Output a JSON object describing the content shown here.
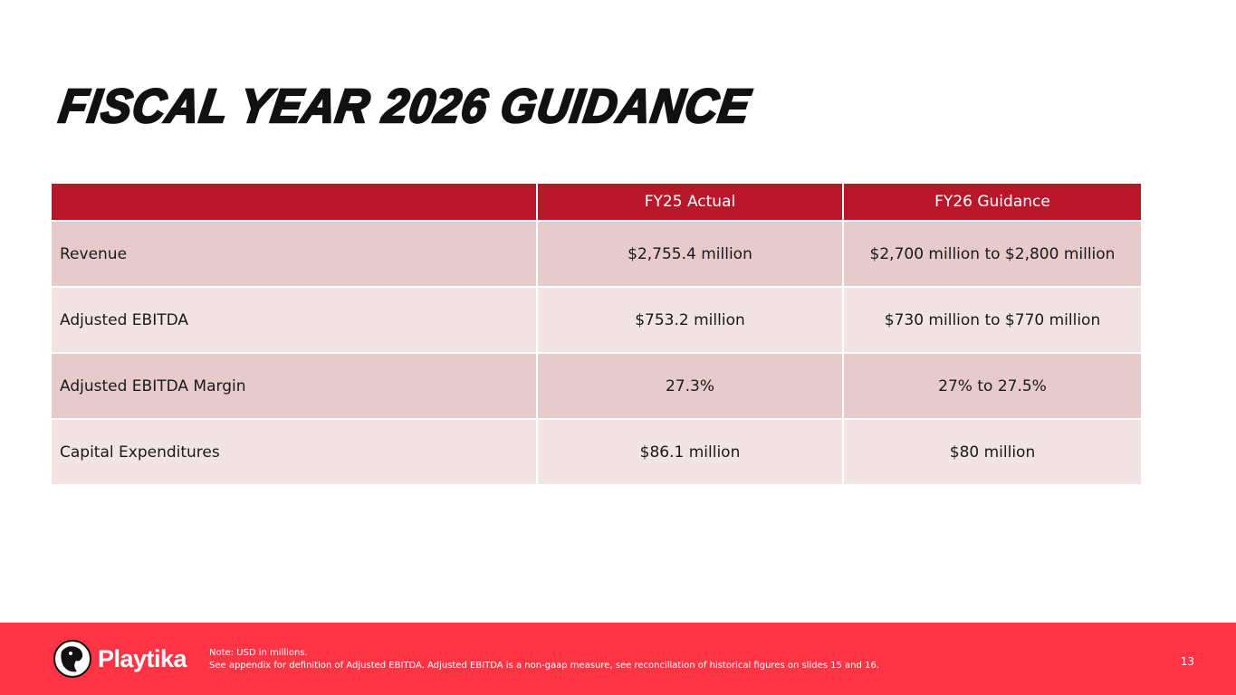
{
  "title": "FISCAL YEAR 2026 GUIDANCE",
  "table": {
    "headers": [
      "",
      "FY25 Actual",
      "FY26 Guidance"
    ],
    "rows": [
      {
        "label": "Revenue",
        "fy25": "$2,755.4  million",
        "fy26": "$2,700 million to $2,800 million"
      },
      {
        "label": "Adjusted EBITDA",
        "fy25": "$753.2 million",
        "fy26": "$730 million to $770 million"
      },
      {
        "label": "Adjusted EBITDA Margin",
        "fy25": "27.3%",
        "fy26": "27% to 27.5%"
      },
      {
        "label": "Capital Expenditures",
        "fy25": "$86.1 million",
        "fy26": "$80 million"
      }
    ]
  },
  "footer": {
    "brand": "Playtika",
    "note_line1": "Note:  USD in millions.",
    "note_line2": "See appendix for definition of Adjusted EBITDA. Adjusted EBITDA is a non-gaap measure, see reconciliation of historical figures on slides 15 and 16.",
    "page_number": "13"
  }
}
